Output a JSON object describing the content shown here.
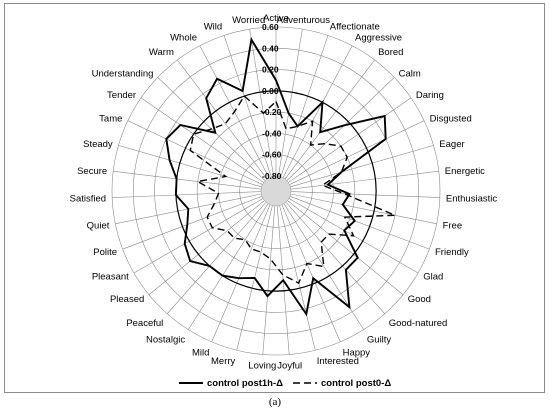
{
  "chart_data": {
    "type": "radar",
    "categories": [
      "Active",
      "Adventurous",
      "Affectionate",
      "Aggressive",
      "Bored",
      "Calm",
      "Daring",
      "Disgusted",
      "Eager",
      "Energetic",
      "Enthusiastic",
      "Free",
      "Friendly",
      "Glad",
      "Good",
      "Good-natured",
      "Guilty",
      "Happy",
      "Interested",
      "Joyful",
      "Loving",
      "Merry",
      "Mild",
      "Nostalgic",
      "Peaceful",
      "Pleased",
      "Pleasant",
      "Polite",
      "Quiet",
      "Satisfied",
      "Secure",
      "Steady",
      "Tame",
      "Tender",
      "Understanding",
      "Warm",
      "Whole",
      "Wild",
      "Worried"
    ],
    "rlim": [
      -0.8,
      0.6
    ],
    "ticks": [
      "-0.80",
      "-0.60",
      "-0.40",
      "-0.20",
      "0.00",
      "0.20",
      "0.40",
      "0.60"
    ],
    "tick_values": [
      -0.8,
      -0.6,
      -0.4,
      -0.2,
      0.0,
      0.2,
      0.4,
      0.6
    ],
    "reference_ring": 0.0,
    "grid": true,
    "legend_position": "bottom",
    "series": [
      {
        "name": "control  post1h-Δ",
        "style": "solid",
        "color": "#000000",
        "values": [
          0.1,
          -0.2,
          -0.3,
          0.0,
          -0.25,
          -0.05,
          0.3,
          0.2,
          -0.3,
          -0.45,
          -0.25,
          -0.3,
          -0.15,
          -0.2,
          0.05,
          0.05,
          0.35,
          -0.05,
          0.25,
          -0.1,
          0.05,
          -0.1,
          -0.05,
          0.0,
          0.0,
          0.1,
          0.05,
          -0.05,
          -0.1,
          0.0,
          0.0,
          0.1,
          0.2,
          0.15,
          -0.15,
          0.15,
          0.25,
          0.05,
          0.5
        ]
      },
      {
        "name": "control  post0-Δ",
        "style": "dashed",
        "color": "#000000",
        "values": [
          -0.1,
          -0.35,
          -0.3,
          -0.2,
          -0.4,
          -0.3,
          -0.2,
          -0.2,
          -0.3,
          -0.5,
          -0.3,
          0.2,
          -0.25,
          -0.1,
          -0.3,
          -0.3,
          -0.1,
          -0.2,
          -0.05,
          -0.15,
          -0.3,
          -0.35,
          -0.35,
          -0.4,
          -0.35,
          -0.35,
          -0.25,
          -0.25,
          -0.35,
          -0.4,
          -0.2,
          -0.45,
          -0.05,
          0.0,
          -0.1,
          -0.15,
          -0.1,
          0.0,
          -0.2
        ]
      }
    ]
  },
  "caption": "(a)"
}
